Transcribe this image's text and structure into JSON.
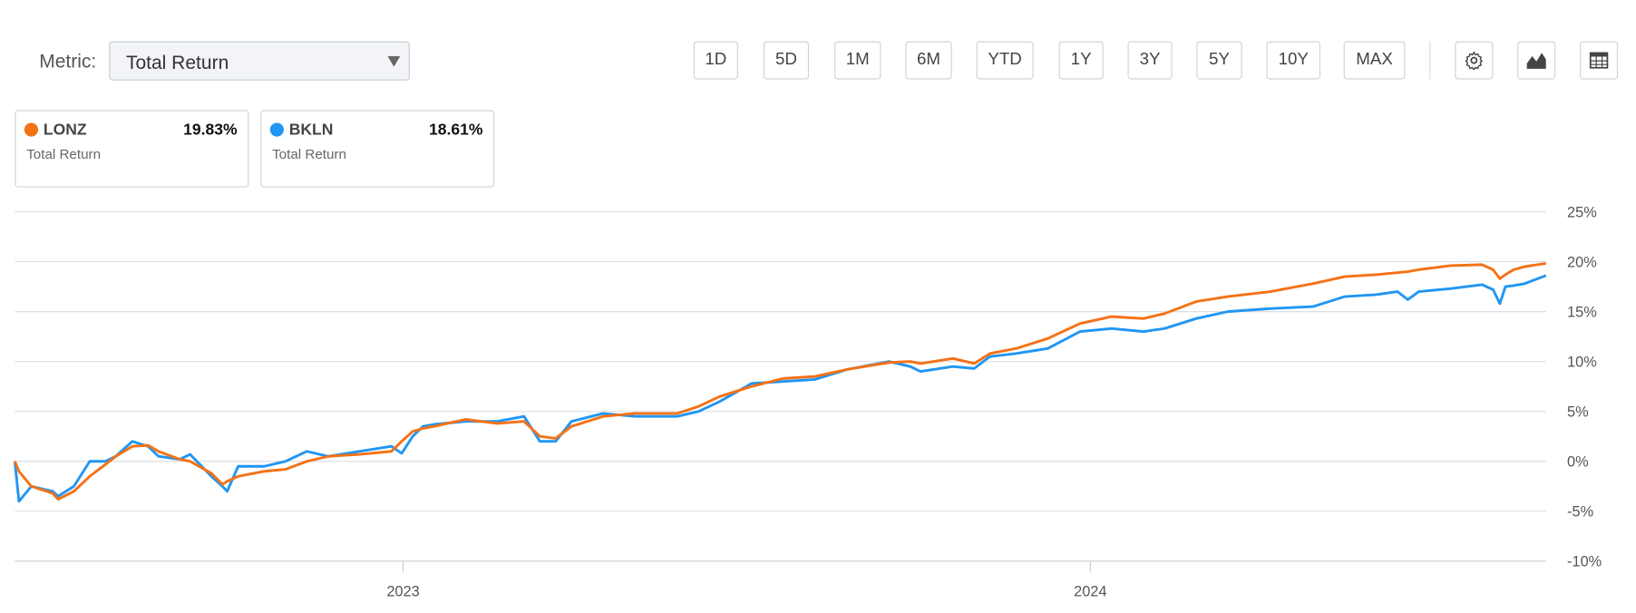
{
  "controls": {
    "metric_label": "Metric:",
    "metric_value": "Total Return",
    "ranges": [
      "1D",
      "5D",
      "1M",
      "6M",
      "YTD",
      "1Y",
      "3Y",
      "5Y",
      "10Y",
      "MAX"
    ]
  },
  "chart_data": {
    "type": "line",
    "x": [
      2022.435,
      2022.441,
      2022.459,
      2022.49,
      2022.498,
      2022.521,
      2022.544,
      2022.567,
      2022.582,
      2022.606,
      2022.629,
      2022.644,
      2022.675,
      2022.69,
      2022.721,
      2022.737,
      2022.744,
      2022.76,
      2022.798,
      2022.829,
      2022.86,
      2022.891,
      2022.937,
      2022.983,
      2022.998,
      2023.014,
      2023.029,
      2023.045,
      2023.091,
      2023.137,
      2023.176,
      2023.199,
      2023.222,
      2023.245,
      2023.291,
      2023.337,
      2023.399,
      2023.43,
      2023.461,
      2023.507,
      2023.553,
      2023.599,
      2023.646,
      2023.707,
      2023.738,
      2023.753,
      2023.8,
      2023.831,
      2023.854,
      2023.892,
      2023.938,
      2023.985,
      2024.031,
      2024.077,
      2024.108,
      2024.154,
      2024.2,
      2024.262,
      2024.324,
      2024.37,
      2024.416,
      2024.447,
      2024.462,
      2024.478,
      2024.524,
      2024.57,
      2024.586,
      2024.596,
      2024.604,
      2024.616,
      2024.632,
      2024.663
    ],
    "series": [
      {
        "name": "LONZ",
        "color": "#f47216",
        "summary_label": "19.83%",
        "summary_metric": "Total Return",
        "values": [
          0,
          -1,
          -2.5,
          -3.2,
          -3.8,
          -3,
          -1.5,
          -0.3,
          0.5,
          1.5,
          1.6,
          1,
          0.2,
          0,
          -1.2,
          -2.3,
          -2,
          -1.5,
          -1,
          -0.8,
          0,
          0.5,
          0.7,
          1,
          2,
          3,
          3.3,
          3.5,
          4.2,
          3.8,
          4,
          2.5,
          2.3,
          3.5,
          4.5,
          4.8,
          4.8,
          5.5,
          6.5,
          7.5,
          8.3,
          8.5,
          9.2,
          9.9,
          10,
          9.8,
          10.3,
          9.8,
          10.8,
          11.3,
          12.3,
          13.8,
          14.5,
          14.3,
          14.8,
          16,
          16.5,
          17,
          17.8,
          18.5,
          18.7,
          18.9,
          19,
          19.2,
          19.6,
          19.7,
          19.2,
          18.3,
          18.7,
          19.2,
          19.5,
          19.83
        ]
      },
      {
        "name": "BKLN",
        "color": "#2196f3",
        "summary_label": "18.61%",
        "summary_metric": "Total Return",
        "values": [
          0,
          -4,
          -2.5,
          -3,
          -3.5,
          -2.5,
          0,
          0,
          0.5,
          2,
          1.5,
          0.5,
          0.2,
          0.7,
          -1.5,
          -2.5,
          -3,
          -0.5,
          -0.5,
          0,
          1,
          0.5,
          1,
          1.5,
          0.8,
          2.5,
          3.5,
          3.7,
          4,
          4,
          4.5,
          2,
          2,
          4,
          4.8,
          4.5,
          4.5,
          5,
          6,
          7.8,
          8,
          8.2,
          9.2,
          10,
          9.5,
          9,
          9.5,
          9.3,
          10.5,
          10.8,
          11.3,
          13,
          13.3,
          13,
          13.3,
          14.3,
          15,
          15.3,
          15.5,
          16.5,
          16.7,
          17,
          16.2,
          17,
          17.3,
          17.7,
          17.2,
          15.8,
          17.5,
          17.6,
          17.8,
          18.61
        ]
      }
    ],
    "xlim": [
      2022.435,
      2024.663
    ],
    "xticks": [
      2023,
      2024
    ],
    "ylim": [
      -10,
      25
    ],
    "yticks": [
      {
        "value": -10,
        "label": "-10%"
      },
      {
        "value": -5,
        "label": "-5%"
      },
      {
        "value": 0,
        "label": "0%"
      },
      {
        "value": 5,
        "label": "5%"
      },
      {
        "value": 10,
        "label": "10%"
      },
      {
        "value": 15,
        "label": "15%"
      },
      {
        "value": 20,
        "label": "20%"
      },
      {
        "value": 25,
        "label": "25%"
      }
    ],
    "grid": true
  }
}
